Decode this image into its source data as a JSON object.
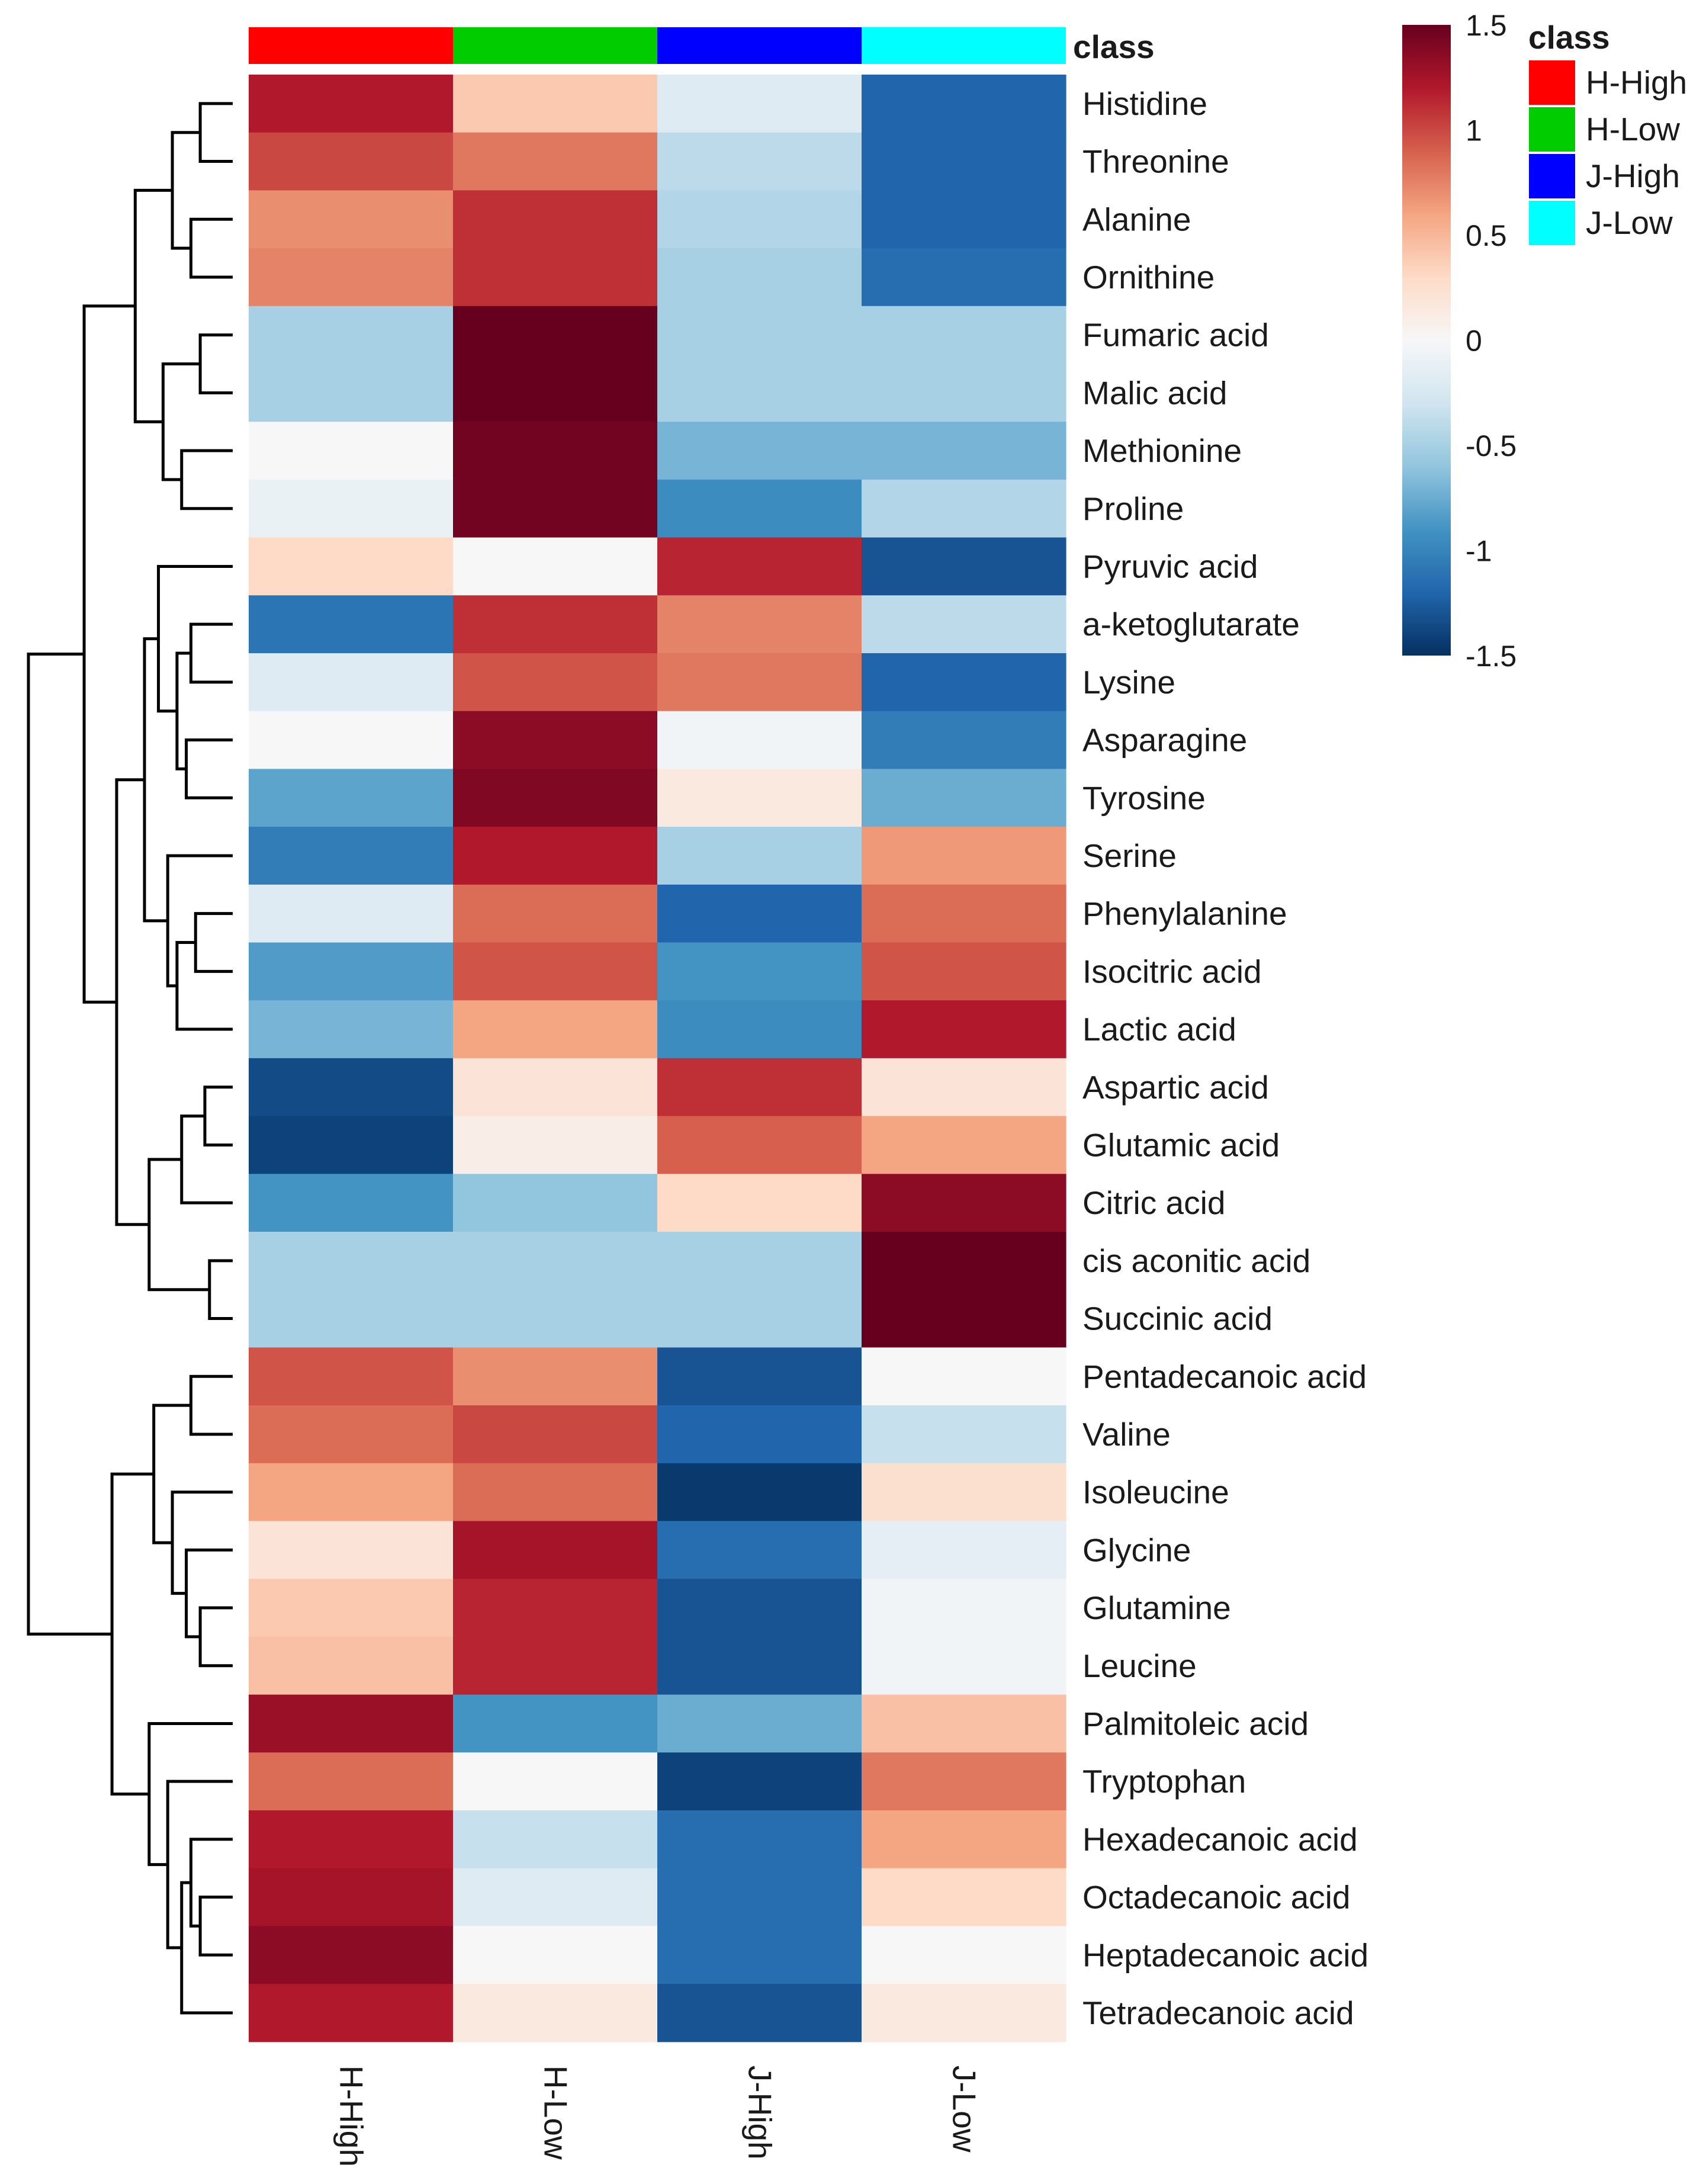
{
  "chart_data": {
    "type": "heatmap",
    "columns": [
      "H-High",
      "H-Low",
      "J-High",
      "J-Low"
    ],
    "column_class_colors": [
      "#ff0000",
      "#00cc00",
      "#0000ff",
      "#00ffff"
    ],
    "class_bar_label": "class",
    "rows": [
      "Histidine",
      "Threonine",
      "Alanine",
      "Ornithine",
      "Fumaric acid",
      "Malic acid",
      "Methionine",
      "Proline",
      "Pyruvic acid",
      "a-ketoglutarate",
      "Lysine",
      "Asparagine",
      "Tyrosine",
      "Serine",
      "Phenylalanine",
      "Isocitric acid",
      "Lactic acid",
      "Aspartic acid",
      "Glutamic acid",
      "Citric acid",
      "cis aconitic acid",
      "Succinic acid",
      "Pentadecanoic acid",
      "Valine",
      "Isoleucine",
      "Glycine",
      "Glutamine",
      "Leucine",
      "Palmitoleic acid",
      "Tryptophan",
      "Hexadecanoic acid",
      "Octadecanoic acid",
      "Heptadecanoic acid",
      "Tetradecanoic acid"
    ],
    "values": [
      [
        1.2,
        0.4,
        -0.2,
        -1.2
      ],
      [
        1.0,
        0.8,
        -0.4,
        -1.2
      ],
      [
        0.7,
        1.1,
        -0.45,
        -1.2
      ],
      [
        0.75,
        1.1,
        -0.5,
        -1.15
      ],
      [
        -0.5,
        1.5,
        -0.5,
        -0.5
      ],
      [
        -0.5,
        1.5,
        -0.5,
        -0.5
      ],
      [
        0.0,
        1.45,
        -0.7,
        -0.7
      ],
      [
        -0.1,
        1.45,
        -0.95,
        -0.45
      ],
      [
        0.3,
        0.0,
        1.15,
        -1.3
      ],
      [
        -1.1,
        1.1,
        0.75,
        -0.4
      ],
      [
        -0.2,
        0.95,
        0.8,
        -1.2
      ],
      [
        0.0,
        1.35,
        -0.05,
        -1.05
      ],
      [
        -0.8,
        1.4,
        0.15,
        -0.75
      ],
      [
        -1.05,
        1.2,
        -0.5,
        0.65
      ],
      [
        -0.2,
        0.85,
        -1.2,
        0.85
      ],
      [
        -0.85,
        0.95,
        -0.9,
        0.95
      ],
      [
        -0.7,
        0.6,
        -0.95,
        1.2
      ],
      [
        -1.35,
        0.2,
        1.1,
        0.2
      ],
      [
        -1.4,
        0.1,
        0.9,
        0.6
      ],
      [
        -0.9,
        -0.6,
        0.3,
        1.35
      ],
      [
        -0.5,
        -0.5,
        -0.5,
        1.5
      ],
      [
        -0.5,
        -0.5,
        -0.5,
        1.5
      ],
      [
        0.95,
        0.7,
        -1.3,
        0.0
      ],
      [
        0.85,
        1.0,
        -1.2,
        -0.35
      ],
      [
        0.6,
        0.85,
        -1.45,
        0.25
      ],
      [
        0.2,
        1.25,
        -1.15,
        -0.15
      ],
      [
        0.4,
        1.15,
        -1.3,
        -0.05
      ],
      [
        0.45,
        1.15,
        -1.3,
        -0.05
      ],
      [
        1.3,
        -0.9,
        -0.75,
        0.45
      ],
      [
        0.85,
        0.0,
        -1.4,
        0.8
      ],
      [
        1.2,
        -0.35,
        -1.15,
        0.6
      ],
      [
        1.25,
        -0.2,
        -1.15,
        0.3
      ],
      [
        1.35,
        0.0,
        -1.15,
        0.0
      ],
      [
        1.2,
        0.15,
        -1.3,
        0.15
      ]
    ],
    "color_scale": {
      "min": -1.5,
      "max": 1.5,
      "stops": [
        "#053061",
        "#2166ac",
        "#4393c3",
        "#92c5de",
        "#d1e5f0",
        "#f7f7f7",
        "#fddbc7",
        "#f4a582",
        "#d6604d",
        "#b2182b",
        "#67001f"
      ],
      "tick_labels": [
        "1.5",
        "1",
        "0.5",
        "0",
        "-0.5",
        "-1",
        "-1.5"
      ],
      "tick_values": [
        1.5,
        1,
        0.5,
        0,
        -0.5,
        -1,
        -1.5
      ]
    },
    "legend": {
      "title": "class",
      "items": [
        {
          "label": "H-High",
          "color": "#ff0000"
        },
        {
          "label": "H-Low",
          "color": "#00cc00"
        },
        {
          "label": "J-High",
          "color": "#0000ff"
        },
        {
          "label": "J-Low",
          "color": "#00ffff"
        }
      ]
    }
  }
}
